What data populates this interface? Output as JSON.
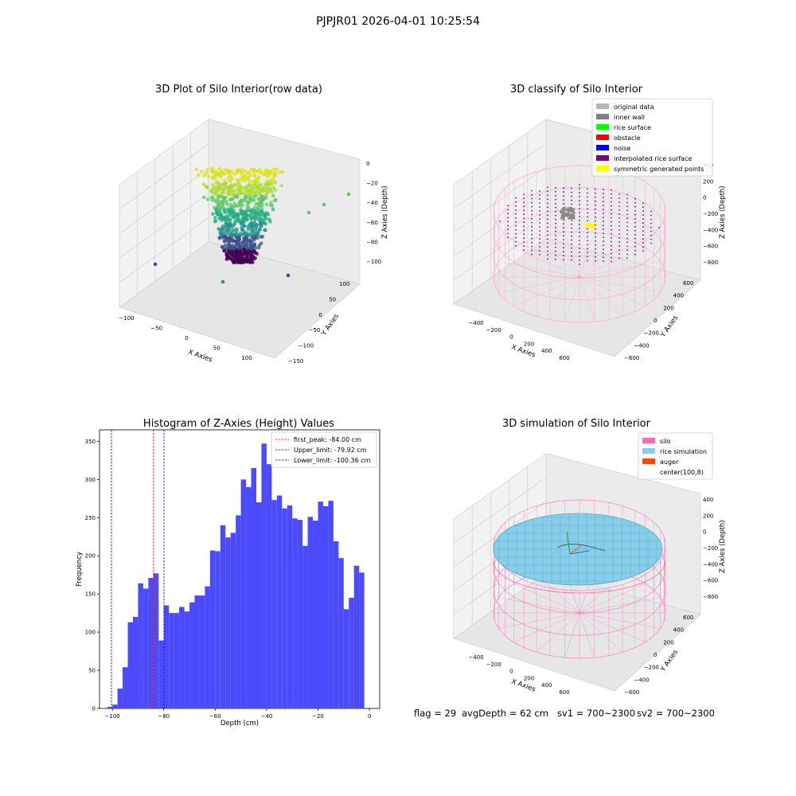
{
  "figure_title": "PJPJR01 2026-04-01 10:25:54",
  "panels": {
    "raw": {
      "title": "3D Plot of Silo Interior(row data)",
      "xlabel": "X Axies",
      "ylabel": "Y Axies",
      "zlabel": "Z Axies (Depth)",
      "xticks": [
        "−100",
        "−50",
        "0",
        "50",
        "100"
      ],
      "yticks": [
        "100",
        "50",
        "0",
        "−50",
        "−100",
        "−150"
      ],
      "zticks": [
        "0",
        "−20",
        "−40",
        "−60",
        "−80",
        "−100"
      ]
    },
    "classify": {
      "title": "3D classify of Silo Interior",
      "xlabel": "X Axies",
      "ylabel": "Y Axies",
      "zlabel": "Z Axies (Depth)",
      "xticks": [
        "−400",
        "−200",
        "0",
        "200",
        "400",
        "600"
      ],
      "yticks": [
        "600",
        "400",
        "200",
        "0",
        "−200",
        "−400",
        "−600"
      ],
      "zticks": [
        "400",
        "200",
        "0",
        "−200",
        "−400",
        "−600",
        "−800"
      ],
      "legend": [
        {
          "label": "original data",
          "color": "#b4b4b4"
        },
        {
          "label": "inner wall",
          "color": "#808080"
        },
        {
          "label": "rice surface",
          "color": "#00ff00"
        },
        {
          "label": "obstacle",
          "color": "#ff0000"
        },
        {
          "label": "noise",
          "color": "#0000ff"
        },
        {
          "label": "interpolated rice surface",
          "color": "#800080"
        },
        {
          "label": "symmetric generated points",
          "color": "#ffff00"
        }
      ]
    },
    "simulation": {
      "title": "3D simulation of Silo Interior",
      "xlabel": "X Axies",
      "ylabel": "Y Axies",
      "zlabel": "Z Axies (Depth)",
      "xticks": [
        "−400",
        "−200",
        "0",
        "200",
        "400",
        "600"
      ],
      "yticks": [
        "600",
        "400",
        "200",
        "0",
        "−200",
        "−400",
        "−600"
      ],
      "zticks": [
        "400",
        "200",
        "0",
        "−200",
        "−400",
        "−600",
        "−800"
      ],
      "legend": [
        {
          "label": "silo",
          "color": "#ff69b4"
        },
        {
          "label": "rice simulation",
          "color": "#87ceeb"
        },
        {
          "label": "auger",
          "color": "#ff4500"
        },
        {
          "label": "center(100,8)",
          "color": "#ffffff"
        }
      ]
    }
  },
  "chart_data": {
    "type": "bar",
    "title": "Histogram of Z-Axies (Height) Values",
    "xlabel": "Depth (cm)",
    "ylabel": "Frequency",
    "xlim": [
      -105,
      4
    ],
    "ylim": [
      0,
      365
    ],
    "xticks": [
      -100,
      -80,
      -60,
      -40,
      -20,
      0
    ],
    "xtick_labels": [
      "−100",
      "−80",
      "−60",
      "−40",
      "−20",
      "0"
    ],
    "yticks": [
      0,
      50,
      100,
      150,
      200,
      250,
      300,
      350
    ],
    "bar_color": "#4b4bfd",
    "bin_width": 2.0,
    "bin_starts": [
      -102,
      -100,
      -98,
      -96,
      -94,
      -92,
      -90,
      -88,
      -86,
      -84,
      -82,
      -80,
      -78,
      -76,
      -74,
      -72,
      -70,
      -68,
      -66,
      -64,
      -62,
      -60,
      -58,
      -56,
      -54,
      -52,
      -50,
      -48,
      -46,
      -44,
      -42,
      -40,
      -38,
      -36,
      -34,
      -32,
      -30,
      -28,
      -26,
      -24,
      -22,
      -20,
      -18,
      -16,
      -14,
      -12,
      -10,
      -8,
      -6,
      -4,
      -2
    ],
    "values": [
      2,
      5,
      26,
      54,
      113,
      120,
      164,
      157,
      171,
      177,
      89,
      135,
      125,
      125,
      133,
      127,
      139,
      148,
      148,
      160,
      207,
      206,
      240,
      224,
      230,
      253,
      300,
      290,
      315,
      270,
      347,
      320,
      273,
      279,
      262,
      266,
      249,
      247,
      213,
      251,
      246,
      271,
      265,
      272,
      219,
      197,
      130,
      145,
      187,
      178,
      0
    ],
    "vlines": [
      {
        "x": -84.0,
        "label": "first_peak: -84.00 cm",
        "color": "#ff0000"
      },
      {
        "x": -79.92,
        "label": "Upper_limit: -79.92 cm",
        "color": "#0000cc"
      },
      {
        "x": -100.36,
        "label": "Lower_limit: -100.36 cm",
        "color": "#0000cc"
      }
    ]
  },
  "stats": {
    "flag": "flag = 29",
    "avg_depth": "avgDepth = 62 cm",
    "sv1": "sv1 = 700~2300",
    "sv2": "sv2 = 700~2300"
  }
}
